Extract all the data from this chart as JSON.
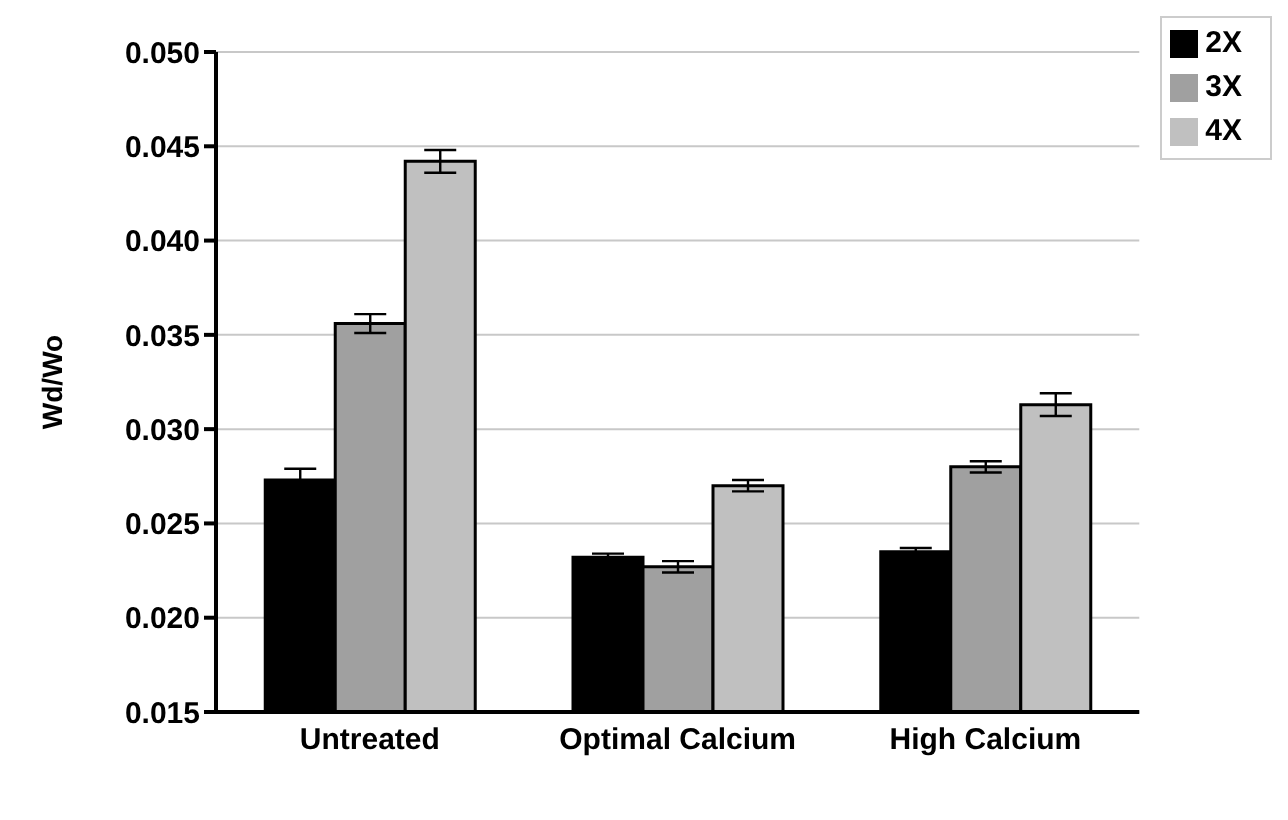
{
  "chart_data": {
    "type": "bar",
    "ylabel": "Wd/Wo",
    "categories": [
      "Untreated",
      "Optimal Calcium",
      "High Calcium"
    ],
    "series": [
      {
        "name": "2X",
        "color": "#000000",
        "values": [
          0.0273,
          0.0232,
          0.0235
        ],
        "errors": [
          0.0006,
          0.0002,
          0.0002
        ]
      },
      {
        "name": "3X",
        "color": "#a0a0a0",
        "values": [
          0.0356,
          0.0227,
          0.028
        ],
        "errors": [
          0.0005,
          0.0003,
          0.0003
        ]
      },
      {
        "name": "4X",
        "color": "#c0c0c0",
        "values": [
          0.0442,
          0.027,
          0.0313
        ],
        "errors": [
          0.0006,
          0.0003,
          0.0006
        ]
      }
    ],
    "ylim": [
      0.015,
      0.05
    ],
    "yticks": [
      0.015,
      {
        "value": 0.02,
        "label": "0.020"
      },
      0.025,
      {
        "value": 0.03,
        "label": "0.030"
      },
      0.035,
      {
        "value": 0.04,
        "label": "0.040"
      },
      0.045,
      {
        "value": 0.05,
        "label": "0.050"
      }
    ],
    "grid": "y",
    "legend": "top right"
  }
}
